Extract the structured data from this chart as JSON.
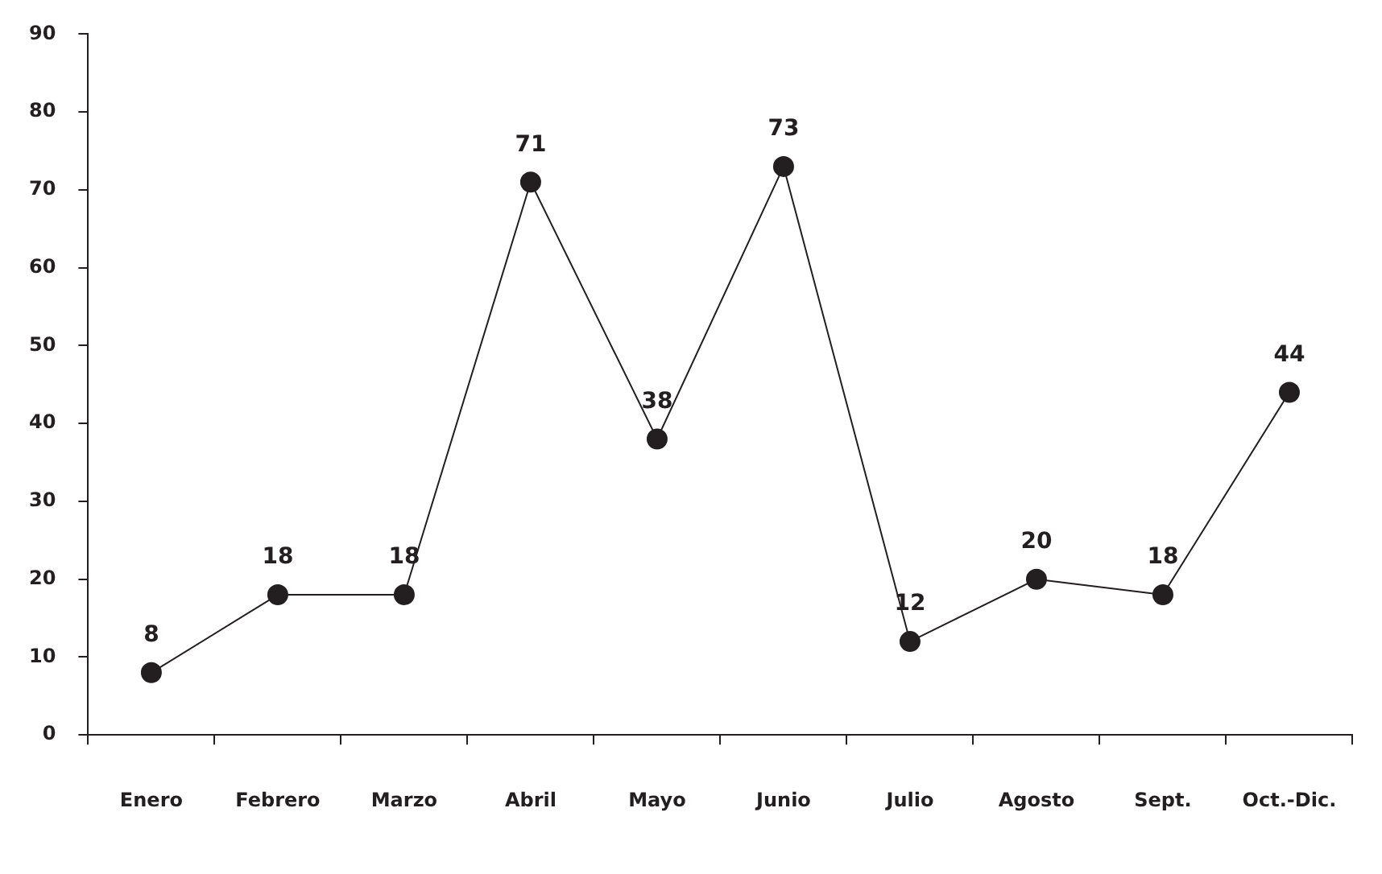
{
  "chart_data": {
    "type": "line",
    "categories": [
      "Enero",
      "Febrero",
      "Marzo",
      "Abril",
      "Mayo",
      "Junio",
      "Julio",
      "Agosto",
      "Sept.",
      "Oct.-Dic."
    ],
    "series": [
      {
        "color": "#231f20",
        "values": [
          8,
          18,
          18,
          71,
          38,
          73,
          12,
          20,
          18,
          44
        ]
      }
    ],
    "ylim": [
      0,
      90
    ],
    "yticks": [
      0,
      10,
      20,
      30,
      40,
      50,
      60,
      70,
      80,
      90
    ],
    "grid": false,
    "legend": false,
    "marker": "circle",
    "line_style": "solid",
    "data_labels": true
  }
}
